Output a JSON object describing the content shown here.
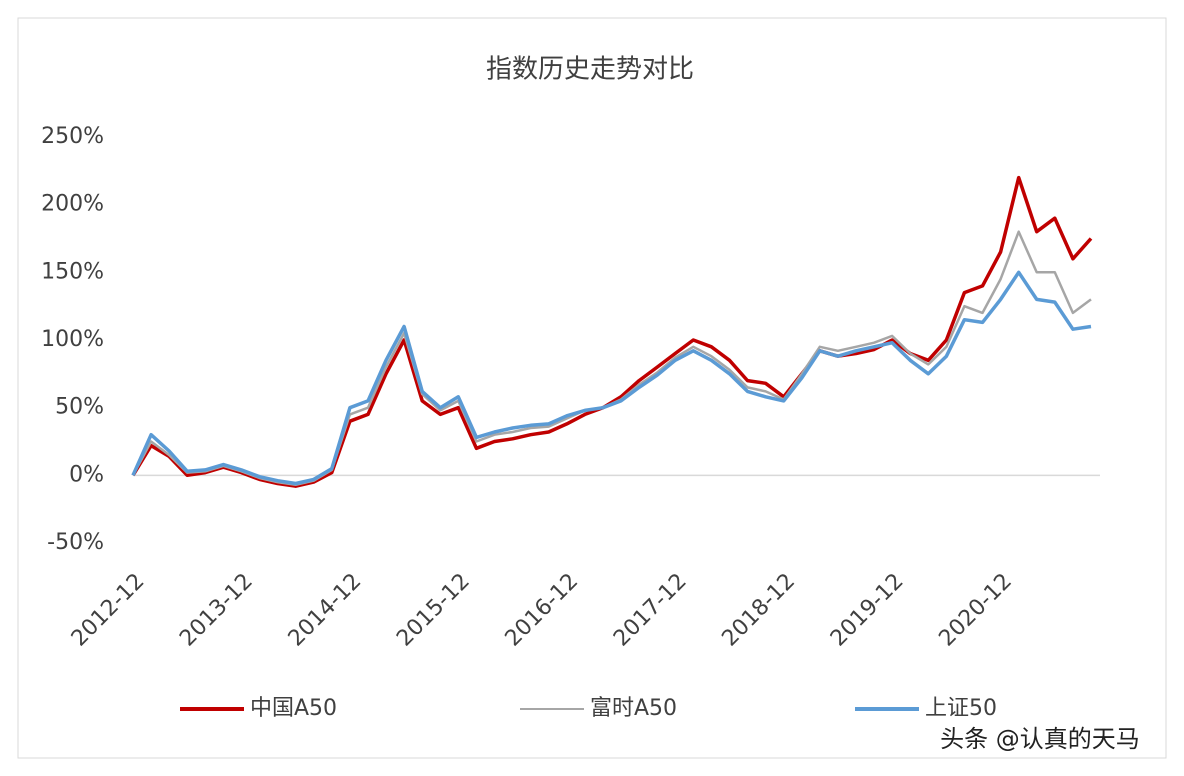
{
  "chart_data": {
    "type": "line",
    "title": "指数历史走势对比",
    "x": [
      "2012-12",
      "2013-02",
      "2013-04",
      "2013-06",
      "2013-08",
      "2013-10",
      "2013-12",
      "2014-02",
      "2014-04",
      "2014-06",
      "2014-08",
      "2014-10",
      "2014-12",
      "2015-02",
      "2015-04",
      "2015-06",
      "2015-08",
      "2015-10",
      "2015-12",
      "2016-02",
      "2016-04",
      "2016-06",
      "2016-08",
      "2016-10",
      "2016-12",
      "2017-02",
      "2017-04",
      "2017-06",
      "2017-08",
      "2017-10",
      "2017-12",
      "2018-02",
      "2018-04",
      "2018-06",
      "2018-08",
      "2018-10",
      "2018-12",
      "2019-02",
      "2019-04",
      "2019-06",
      "2019-08",
      "2019-10",
      "2019-12",
      "2020-02",
      "2020-04",
      "2020-06",
      "2020-08",
      "2020-10",
      "2020-12",
      "2021-02",
      "2021-04",
      "2021-06",
      "2021-08",
      "2021-10"
    ],
    "xlim": [
      "2012-12",
      "2021-11"
    ],
    "xticks": [
      "2012-12",
      "2013-12",
      "2014-12",
      "2015-12",
      "2016-12",
      "2017-12",
      "2018-12",
      "2019-12",
      "2020-12"
    ],
    "series": [
      {
        "name": "中国A50",
        "color": "#c00000",
        "values": [
          0,
          22,
          14,
          0,
          2,
          6,
          2,
          -3,
          -6,
          -8,
          -5,
          2,
          40,
          45,
          75,
          100,
          55,
          45,
          50,
          20,
          25,
          27,
          30,
          32,
          38,
          45,
          50,
          58,
          70,
          80,
          90,
          100,
          95,
          85,
          70,
          68,
          58,
          75,
          92,
          88,
          90,
          93,
          100,
          90,
          85,
          100,
          135,
          140,
          165,
          220,
          180,
          190,
          160,
          175
        ]
      },
      {
        "name": "富时A50",
        "color": "#a6a6a6",
        "values": [
          0,
          25,
          15,
          2,
          3,
          7,
          3,
          -2,
          -5,
          -7,
          -4,
          4,
          45,
          50,
          80,
          105,
          60,
          48,
          55,
          25,
          30,
          32,
          35,
          36,
          42,
          48,
          50,
          56,
          67,
          76,
          87,
          95,
          88,
          78,
          65,
          62,
          56,
          75,
          95,
          92,
          95,
          98,
          103,
          90,
          82,
          95,
          125,
          120,
          145,
          180,
          150,
          150,
          120,
          130
        ]
      },
      {
        "name": "上证50",
        "color": "#5b9bd5",
        "values": [
          0,
          30,
          18,
          3,
          4,
          8,
          4,
          -1,
          -4,
          -6,
          -3,
          5,
          50,
          55,
          85,
          110,
          62,
          50,
          58,
          28,
          32,
          35,
          37,
          38,
          44,
          48,
          50,
          55,
          65,
          74,
          85,
          92,
          85,
          75,
          62,
          58,
          55,
          72,
          92,
          88,
          92,
          95,
          98,
          85,
          75,
          88,
          115,
          113,
          130,
          150,
          130,
          128,
          108,
          110
        ]
      }
    ],
    "ylim": [
      -50,
      250
    ],
    "yticks": [
      {
        "value": -50,
        "label": "-50%"
      },
      {
        "value": 0,
        "label": "0%"
      },
      {
        "value": 50,
        "label": "50%"
      },
      {
        "value": 100,
        "label": "100%"
      },
      {
        "value": 150,
        "label": "150%"
      },
      {
        "value": 200,
        "label": "200%"
      },
      {
        "value": 250,
        "label": "250%"
      }
    ],
    "legend": "bottom",
    "watermark": "头条 @认真的天马"
  }
}
